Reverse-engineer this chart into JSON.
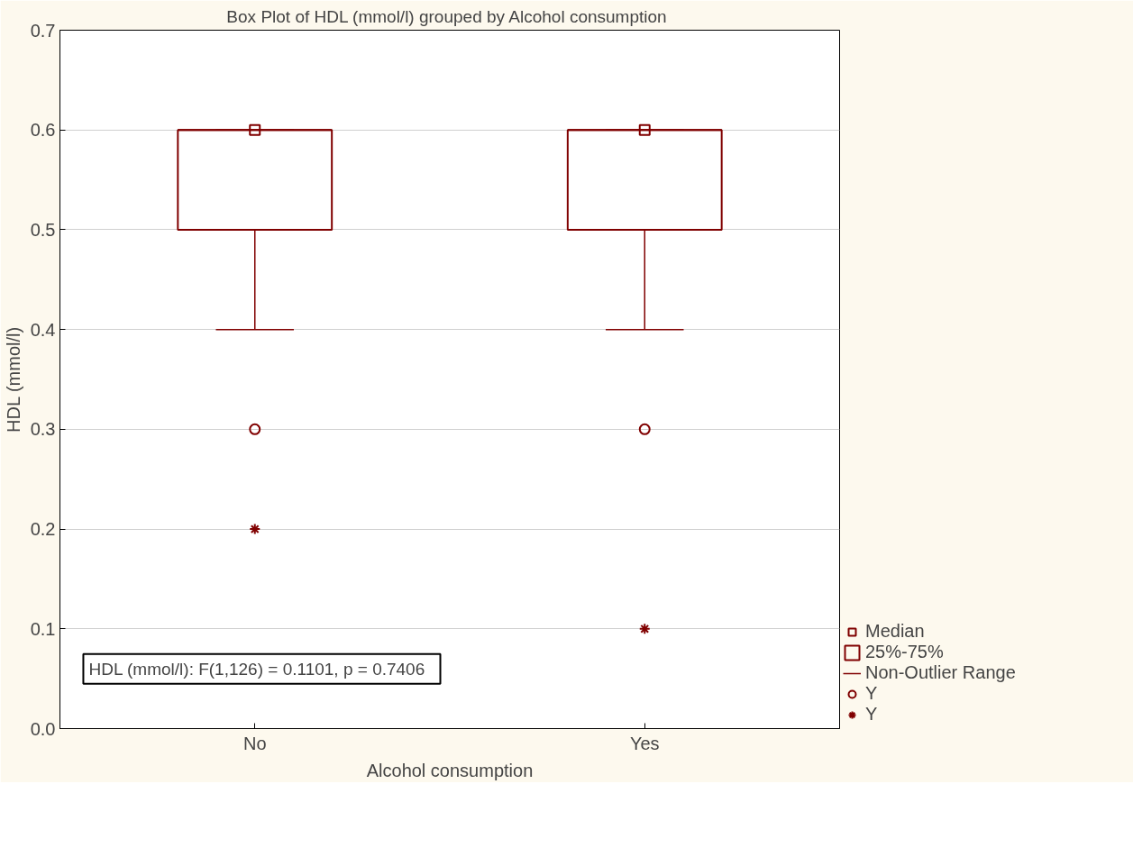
{
  "chart_data": {
    "type": "box",
    "title": "Box Plot of HDL (mmol/l) grouped by  Alcohol consumption",
    "xlabel": "Alcohol consumption",
    "ylabel": "HDL (mmol/l)",
    "categories": [
      "No",
      "Yes"
    ],
    "series": [
      {
        "type": "scatter",
        "name": "Median",
        "marker": "square",
        "color": "#800000",
        "x": [
          "No",
          "Yes"
        ],
        "values": [
          0.6,
          0.6
        ]
      },
      {
        "name": "25%-75%",
        "color": "#800000",
        "boxes": [
          {
            "low": 0.4,
            "q1": 0.5,
            "median": 0.6,
            "q3": 0.6,
            "high": 0.6
          },
          {
            "low": 0.4,
            "q1": 0.5,
            "median": 0.6,
            "q3": 0.6,
            "high": 0.6
          }
        ]
      },
      {
        "type": "scatter",
        "name": "Y",
        "marker": "circle",
        "color": "#800000",
        "x": [
          "No",
          "Yes"
        ],
        "values": [
          0.3,
          0.3
        ]
      },
      {
        "type": "scatter",
        "name": "Y",
        "marker": "cross",
        "color": "#800000",
        "x": [
          "No",
          "Yes"
        ],
        "values": [
          0.2,
          0.1
        ]
      }
    ],
    "ylim": [
      0,
      0.7
    ],
    "yticks": [
      {
        "value": 0,
        "label": "0.0"
      },
      0.1,
      0.2,
      0.3,
      0.4,
      0.5,
      0.6,
      0.7
    ],
    "grid": "y",
    "legend": "bottom right",
    "annotations": [
      "HDL (mmol/l):   F(1,126) = 0.1101, p = 0.7406",
      "Non-Outlier Range"
    ]
  }
}
